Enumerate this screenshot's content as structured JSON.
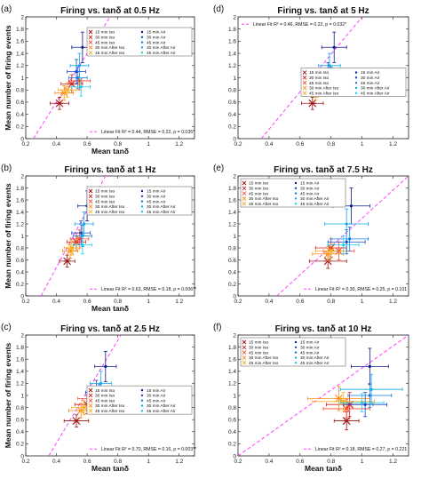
{
  "figure": {
    "legend_labels": [
      "15 min Iso",
      "30 min Iso",
      "45 min Iso",
      "30 min After Iso",
      "45 min After Iso",
      "15 min Air",
      "30 min Air",
      "45 min Air",
      "30 min After Air",
      "45 min After Air"
    ],
    "series_colors": {
      "15 min Iso": "#a01010",
      "30 min Iso": "#d02020",
      "45 min Iso": "#ff4a2a",
      "30 min After Iso": "#ff8a10",
      "45 min After Iso": "#f5b020",
      "15 min Air": "#0a1a8a",
      "30 min Air": "#1848c8",
      "45 min Air": "#1878e0",
      "30 min After Air": "#10a8e8",
      "45 min After Air": "#10d0e8"
    },
    "fit_color": "#ff40ff"
  },
  "chart_data": [
    {
      "letter": "(a)",
      "type": "scatter",
      "title": "Firing vs. tanδ at 0.5 Hz",
      "xlabel": "Mean tanδ",
      "ylabel": "Mean number of firing events",
      "xlim": [
        0.2,
        1.3
      ],
      "ylim": [
        0,
        2.0
      ],
      "xticks": [
        0.2,
        0.4,
        0.6,
        0.8,
        1,
        1.2
      ],
      "yticks": [
        0,
        0.2,
        0.4,
        0.6,
        0.8,
        1,
        1.2,
        1.4,
        1.6,
        1.8,
        2
      ],
      "fit_label": "Linear Fit R² = 0.44, RMSE = 0.22, p = 0.035*",
      "fit_line": [
        [
          0.25,
          0.0
        ],
        [
          0.75,
          2.0
        ]
      ],
      "legend_position": "top-right",
      "fit_position": "bottom",
      "points": [
        {
          "series": "15 min Iso",
          "x": 0.42,
          "y": 0.58,
          "xerr": 0.06,
          "yerr": 0.1
        },
        {
          "series": "30 min Iso",
          "x": 0.5,
          "y": 0.9,
          "xerr": 0.07,
          "yerr": 0.15
        },
        {
          "series": "45 min Iso",
          "x": 0.55,
          "y": 0.95,
          "xerr": 0.07,
          "yerr": 0.15
        },
        {
          "series": "30 min After Iso",
          "x": 0.45,
          "y": 0.75,
          "xerr": 0.06,
          "yerr": 0.12
        },
        {
          "series": "45 min After Iso",
          "x": 0.47,
          "y": 0.8,
          "xerr": 0.06,
          "yerr": 0.12
        },
        {
          "series": "15 min Air",
          "x": 0.57,
          "y": 1.5,
          "xerr": 0.07,
          "yerr": 0.25
        },
        {
          "series": "30 min Air",
          "x": 0.53,
          "y": 1.1,
          "xerr": 0.06,
          "yerr": 0.2
        },
        {
          "series": "45 min Air",
          "x": 0.54,
          "y": 1.0,
          "xerr": 0.06,
          "yerr": 0.18
        },
        {
          "series": "30 min After Air",
          "x": 0.55,
          "y": 1.2,
          "xerr": 0.06,
          "yerr": 0.2
        },
        {
          "series": "45 min After Air",
          "x": 0.56,
          "y": 0.85,
          "xerr": 0.06,
          "yerr": 0.15
        }
      ]
    },
    {
      "letter": "(d)",
      "type": "scatter",
      "title": "Firing vs. tanδ at 5 Hz",
      "xlabel": "",
      "ylabel": "",
      "xlim": [
        0.2,
        1.3
      ],
      "ylim": [
        0,
        2.0
      ],
      "xticks": [
        0.2,
        0.4,
        0.6,
        0.8,
        1,
        1.2
      ],
      "yticks": [
        0,
        0.2,
        0.4,
        0.6,
        0.8,
        1,
        1.2,
        1.4,
        1.6,
        1.8,
        2
      ],
      "fit_label": "Linear Fit R² = 0.46, RMSE = 0.22, p = 0.032*",
      "fit_line": [
        [
          0.35,
          0.0
        ],
        [
          1.0,
          2.0
        ]
      ],
      "legend_position": "center-right",
      "fit_position": "top",
      "points": [
        {
          "series": "15 min Iso",
          "x": 0.68,
          "y": 0.58,
          "xerr": 0.07,
          "yerr": 0.1
        },
        {
          "series": "30 min Iso",
          "x": 0.72,
          "y": 0.88,
          "xerr": 0.07,
          "yerr": 0.15
        },
        {
          "series": "45 min Iso",
          "x": 0.74,
          "y": 0.95,
          "xerr": 0.07,
          "yerr": 0.15
        },
        {
          "series": "30 min After Iso",
          "x": 0.7,
          "y": 0.75,
          "xerr": 0.07,
          "yerr": 0.12
        },
        {
          "series": "45 min After Iso",
          "x": 0.71,
          "y": 0.8,
          "xerr": 0.07,
          "yerr": 0.12
        },
        {
          "series": "15 min Air",
          "x": 0.82,
          "y": 1.5,
          "xerr": 0.08,
          "yerr": 0.25
        },
        {
          "series": "30 min Air",
          "x": 0.78,
          "y": 1.05,
          "xerr": 0.07,
          "yerr": 0.2
        },
        {
          "series": "45 min Air",
          "x": 0.8,
          "y": 1.0,
          "xerr": 0.07,
          "yerr": 0.18
        },
        {
          "series": "30 min After Air",
          "x": 0.79,
          "y": 1.2,
          "xerr": 0.07,
          "yerr": 0.2
        },
        {
          "series": "45 min After Air",
          "x": 0.8,
          "y": 0.85,
          "xerr": 0.07,
          "yerr": 0.15
        }
      ]
    },
    {
      "letter": "(b)",
      "type": "scatter",
      "title": "Firing vs. tanδ at 1 Hz",
      "xlabel": "Mean tanδ",
      "ylabel": "Mean number of firing events",
      "xlim": [
        0.2,
        1.3
      ],
      "ylim": [
        0,
        2.0
      ],
      "xticks": [
        0.2,
        0.4,
        0.6,
        0.8,
        1,
        1.2
      ],
      "yticks": [
        0,
        0.2,
        0.4,
        0.6,
        0.8,
        1,
        1.2,
        1.4,
        1.6,
        1.8,
        2
      ],
      "fit_label": "Linear Fit R² = 0.63, RMSE = 0.18, p = 0.006**",
      "fit_line": [
        [
          0.3,
          0.0
        ],
        [
          0.72,
          2.0
        ]
      ],
      "legend_position": "top-right",
      "fit_position": "bottom",
      "points": [
        {
          "series": "15 min Iso",
          "x": 0.47,
          "y": 0.58,
          "xerr": 0.05,
          "yerr": 0.1
        },
        {
          "series": "30 min Iso",
          "x": 0.53,
          "y": 0.9,
          "xerr": 0.06,
          "yerr": 0.15
        },
        {
          "series": "45 min Iso",
          "x": 0.55,
          "y": 0.95,
          "xerr": 0.06,
          "yerr": 0.15
        },
        {
          "series": "30 min After Iso",
          "x": 0.49,
          "y": 0.75,
          "xerr": 0.05,
          "yerr": 0.12
        },
        {
          "series": "45 min After Iso",
          "x": 0.5,
          "y": 0.8,
          "xerr": 0.05,
          "yerr": 0.12
        },
        {
          "series": "15 min Air",
          "x": 0.6,
          "y": 1.5,
          "xerr": 0.06,
          "yerr": 0.25
        },
        {
          "series": "30 min Air",
          "x": 0.56,
          "y": 1.05,
          "xerr": 0.06,
          "yerr": 0.2
        },
        {
          "series": "45 min Air",
          "x": 0.57,
          "y": 1.0,
          "xerr": 0.06,
          "yerr": 0.18
        },
        {
          "series": "30 min After Air",
          "x": 0.58,
          "y": 1.2,
          "xerr": 0.06,
          "yerr": 0.2
        },
        {
          "series": "45 min After Air",
          "x": 0.57,
          "y": 0.85,
          "xerr": 0.06,
          "yerr": 0.15
        }
      ]
    },
    {
      "letter": "(e)",
      "type": "scatter",
      "title": "Firing vs. tanδ at 7.5 Hz",
      "xlabel": "",
      "ylabel": "",
      "xlim": [
        0.2,
        1.3
      ],
      "ylim": [
        0,
        2.0
      ],
      "xticks": [
        0.2,
        0.4,
        0.6,
        0.8,
        1,
        1.2
      ],
      "yticks": [
        0,
        0.2,
        0.4,
        0.6,
        0.8,
        1,
        1.2,
        1.4,
        1.6,
        1.8,
        2
      ],
      "fit_label": "Linear Fit R² = 0.30, RMSE = 0.25, p = 0.101",
      "fit_line": [
        [
          0.45,
          0.0
        ],
        [
          1.3,
          2.0
        ]
      ],
      "legend_position": "top-left",
      "fit_position": "bottom",
      "points": [
        {
          "series": "15 min Iso",
          "x": 0.78,
          "y": 0.58,
          "xerr": 0.12,
          "yerr": 0.12
        },
        {
          "series": "30 min Iso",
          "x": 0.8,
          "y": 0.8,
          "xerr": 0.1,
          "yerr": 0.15
        },
        {
          "series": "45 min Iso",
          "x": 0.85,
          "y": 0.75,
          "xerr": 0.1,
          "yerr": 0.15
        },
        {
          "series": "30 min After Iso",
          "x": 0.78,
          "y": 0.7,
          "xerr": 0.1,
          "yerr": 0.12
        },
        {
          "series": "45 min After Iso",
          "x": 0.8,
          "y": 0.75,
          "xerr": 0.1,
          "yerr": 0.12
        },
        {
          "series": "15 min Air",
          "x": 0.93,
          "y": 1.5,
          "xerr": 0.12,
          "yerr": 0.3
        },
        {
          "series": "30 min Air",
          "x": 0.9,
          "y": 0.9,
          "xerr": 0.12,
          "yerr": 0.2
        },
        {
          "series": "45 min Air",
          "x": 0.92,
          "y": 0.95,
          "xerr": 0.12,
          "yerr": 0.2
        },
        {
          "series": "30 min After Air",
          "x": 0.9,
          "y": 1.2,
          "xerr": 0.14,
          "yerr": 0.25
        },
        {
          "series": "45 min After Air",
          "x": 0.88,
          "y": 0.85,
          "xerr": 0.1,
          "yerr": 0.15
        }
      ]
    },
    {
      "letter": "(c)",
      "type": "scatter",
      "title": "Firing vs. tanδ at 2.5 Hz",
      "xlabel": "Mean tanδ",
      "ylabel": "Mean number of firing events",
      "xlim": [
        0.2,
        1.3
      ],
      "ylim": [
        0,
        2.0
      ],
      "xticks": [
        0.2,
        0.4,
        0.6,
        0.8,
        1,
        1.2
      ],
      "yticks": [
        0,
        0.2,
        0.4,
        0.6,
        0.8,
        1,
        1.2,
        1.4,
        1.6,
        1.8,
        2
      ],
      "fit_label": "Linear Fit R² = 0.70, RMSE = 0.16, p = 0.003**",
      "fit_line": [
        [
          0.35,
          0.0
        ],
        [
          0.82,
          2.0
        ]
      ],
      "legend_position": "center-right",
      "fit_position": "bottom",
      "points": [
        {
          "series": "15 min Iso",
          "x": 0.53,
          "y": 0.58,
          "xerr": 0.08,
          "yerr": 0.1
        },
        {
          "series": "30 min Iso",
          "x": 0.6,
          "y": 0.85,
          "xerr": 0.08,
          "yerr": 0.15
        },
        {
          "series": "45 min Iso",
          "x": 0.62,
          "y": 0.95,
          "xerr": 0.08,
          "yerr": 0.15
        },
        {
          "series": "30 min After Iso",
          "x": 0.56,
          "y": 0.75,
          "xerr": 0.08,
          "yerr": 0.12
        },
        {
          "series": "45 min After Iso",
          "x": 0.58,
          "y": 0.8,
          "xerr": 0.08,
          "yerr": 0.12
        },
        {
          "series": "15 min Air",
          "x": 0.72,
          "y": 1.48,
          "xerr": 0.07,
          "yerr": 0.25
        },
        {
          "series": "30 min Air",
          "x": 0.66,
          "y": 1.05,
          "xerr": 0.07,
          "yerr": 0.2
        },
        {
          "series": "45 min Air",
          "x": 0.68,
          "y": 1.0,
          "xerr": 0.07,
          "yerr": 0.18
        },
        {
          "series": "30 min After Air",
          "x": 0.69,
          "y": 1.2,
          "xerr": 0.07,
          "yerr": 0.2
        },
        {
          "series": "45 min After Air",
          "x": 0.68,
          "y": 0.85,
          "xerr": 0.07,
          "yerr": 0.15
        }
      ]
    },
    {
      "letter": "(f)",
      "type": "scatter",
      "title": "Firing vs. tanδ at 10 Hz",
      "xlabel": "Mean tanδ",
      "ylabel": "",
      "xlim": [
        0.2,
        1.3
      ],
      "ylim": [
        0,
        2.0
      ],
      "xticks": [
        0.2,
        0.4,
        0.6,
        0.8,
        1,
        1.2
      ],
      "yticks": [
        0,
        0.2,
        0.4,
        0.6,
        0.8,
        1,
        1.2,
        1.4,
        1.6,
        1.8,
        2
      ],
      "fit_label": "Linear Fit R² = 0.18, RMSE = 0.27, p = 0.221",
      "fit_line": [
        [
          0.2,
          0.0
        ],
        [
          1.3,
          2.0
        ]
      ],
      "legend_position": "top-left",
      "fit_position": "bottom",
      "points": [
        {
          "series": "15 min Iso",
          "x": 0.9,
          "y": 0.58,
          "xerr": 0.08,
          "yerr": 0.15
        },
        {
          "series": "30 min Iso",
          "x": 0.92,
          "y": 0.85,
          "xerr": 0.15,
          "yerr": 0.2
        },
        {
          "series": "45 min Iso",
          "x": 0.9,
          "y": 0.78,
          "xerr": 0.15,
          "yerr": 0.15
        },
        {
          "series": "30 min After Iso",
          "x": 0.85,
          "y": 0.95,
          "xerr": 0.2,
          "yerr": 0.2
        },
        {
          "series": "45 min After Iso",
          "x": 0.88,
          "y": 0.9,
          "xerr": 0.2,
          "yerr": 0.15
        },
        {
          "series": "15 min Air",
          "x": 1.05,
          "y": 1.48,
          "xerr": 0.12,
          "yerr": 0.3
        },
        {
          "series": "30 min Air",
          "x": 1.02,
          "y": 0.85,
          "xerr": 0.14,
          "yerr": 0.2
        },
        {
          "series": "45 min Air",
          "x": 1.05,
          "y": 1.0,
          "xerr": 0.14,
          "yerr": 0.2
        },
        {
          "series": "30 min After Air",
          "x": 1.06,
          "y": 1.1,
          "xerr": 0.2,
          "yerr": 0.25
        },
        {
          "series": "45 min After Air",
          "x": 1.0,
          "y": 0.88,
          "xerr": 0.14,
          "yerr": 0.15
        }
      ]
    }
  ]
}
